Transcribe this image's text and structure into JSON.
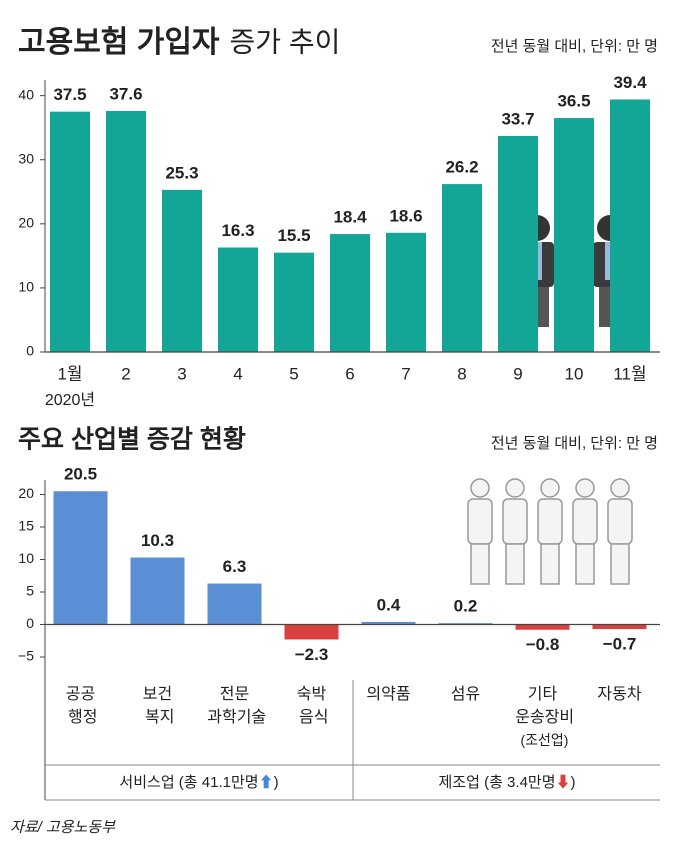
{
  "chart_data": [
    {
      "type": "bar",
      "title": "고용보험 가입자",
      "title_light": "증가 추이",
      "subtitle": "전년 동월 대비, 단위: 만 명",
      "categories": [
        "1월",
        "2",
        "3",
        "4",
        "5",
        "6",
        "7",
        "8",
        "9",
        "10",
        "11월"
      ],
      "year_label": "2020년",
      "values": [
        37.5,
        37.6,
        25.3,
        16.3,
        15.5,
        18.4,
        18.6,
        26.2,
        33.7,
        36.5,
        39.4
      ],
      "color": "#13a596",
      "ylim": [
        0,
        44
      ],
      "yticks": [
        0,
        10,
        20,
        30,
        40
      ]
    },
    {
      "type": "bar",
      "title": "주요 산업별 증감 현황",
      "subtitle": "전년 동월 대비, 단위: 만 명",
      "categories": [
        "공공\n행정",
        "보건\n복지",
        "전문\n과학기술",
        "숙박\n음식",
        "의약품",
        "섬유",
        "기타\n운송장비\n(조선업)",
        "자동차"
      ],
      "values": [
        20.5,
        10.3,
        6.3,
        -2.3,
        0.4,
        0.2,
        -0.8,
        -0.7
      ],
      "value_labels": [
        "20.5",
        "10.3",
        "6.3",
        "−2.3",
        "0.4",
        "0.2",
        "−0.8",
        "−0.7"
      ],
      "colors": [
        "#5b8fd5",
        "#5b8fd5",
        "#5b8fd5",
        "#d9403e",
        "#5b8fd5",
        "#5b8fd5",
        "#d9403e",
        "#d9403e"
      ],
      "ylim": [
        -7,
        23
      ],
      "yticks": [
        {
          "value": -5,
          "label": "−5"
        },
        0,
        5,
        10,
        15,
        20
      ],
      "groups": [
        {
          "label": "서비스업 (총 41.1만명⬆)",
          "arrow_color": "#4a86d4"
        },
        {
          "label": "제조업 (총 3.4만명⬇)",
          "arrow_color": "#d9403e"
        }
      ]
    }
  ],
  "source": "자료/ 고용노동부"
}
